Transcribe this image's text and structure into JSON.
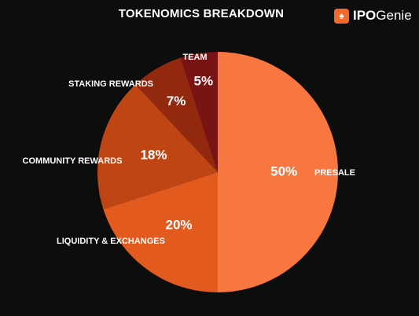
{
  "title": "TOKENOMICS BREAKDOWN",
  "logo": {
    "bold": "IPO",
    "light": "Genie",
    "icon": "genie-lamp-icon"
  },
  "chart_data": {
    "type": "pie",
    "categories": [
      "PRESALE",
      "LIQUIDITY & EXCHANGES",
      "COMMUNITY REWARDS",
      "STAKING REWARDS",
      "TEAM"
    ],
    "values": [
      50,
      20,
      18,
      7,
      5
    ],
    "value_labels": [
      "50%",
      "20%",
      "18%",
      "7%",
      "5%"
    ],
    "colors": [
      "#f8763f",
      "#e35a1e",
      "#c04514",
      "#92290f",
      "#781414"
    ]
  }
}
